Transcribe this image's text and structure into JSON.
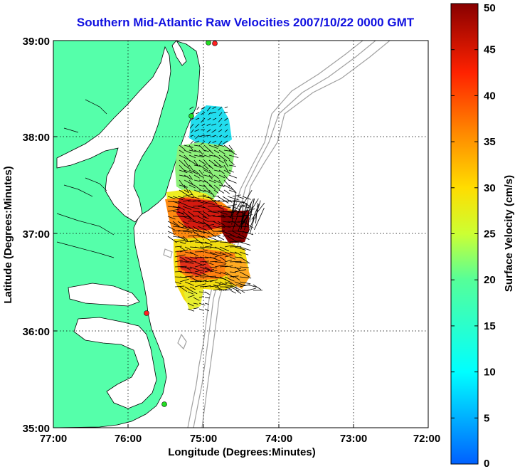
{
  "title": "Southern Mid-Atlantic Raw Velocities 2007/10/22 0000 GMT",
  "chart_data": {
    "type": "heatmap",
    "title": "Southern Mid-Atlantic Raw Velocities 2007/10/22 0000 GMT",
    "xlabel": "Longitude (Degrees:Minutes)",
    "ylabel": "Latitude (Degrees:Minutes)",
    "xlim": [
      -77,
      -72
    ],
    "ylim": [
      35,
      39
    ],
    "x_ticks": [
      "77:00",
      "76:00",
      "75:00",
      "74:00",
      "73:00",
      "72:00"
    ],
    "y_ticks": [
      "35:00",
      "36:00",
      "37:00",
      "38:00",
      "39:00"
    ],
    "grid": true,
    "colorbar": {
      "label": "Surface Velocity (cm/s)",
      "range": [
        0,
        50
      ],
      "ticks": [
        "0",
        "5",
        "10",
        "15",
        "20",
        "25",
        "30",
        "35",
        "40",
        "45",
        "50"
      ]
    },
    "colors": {
      "land": "#55ffaa",
      "coast": "#000000",
      "bathymetry": "#a0a0a0",
      "stations": "#22dd22",
      "active_stations": "#ff2020"
    }
  }
}
